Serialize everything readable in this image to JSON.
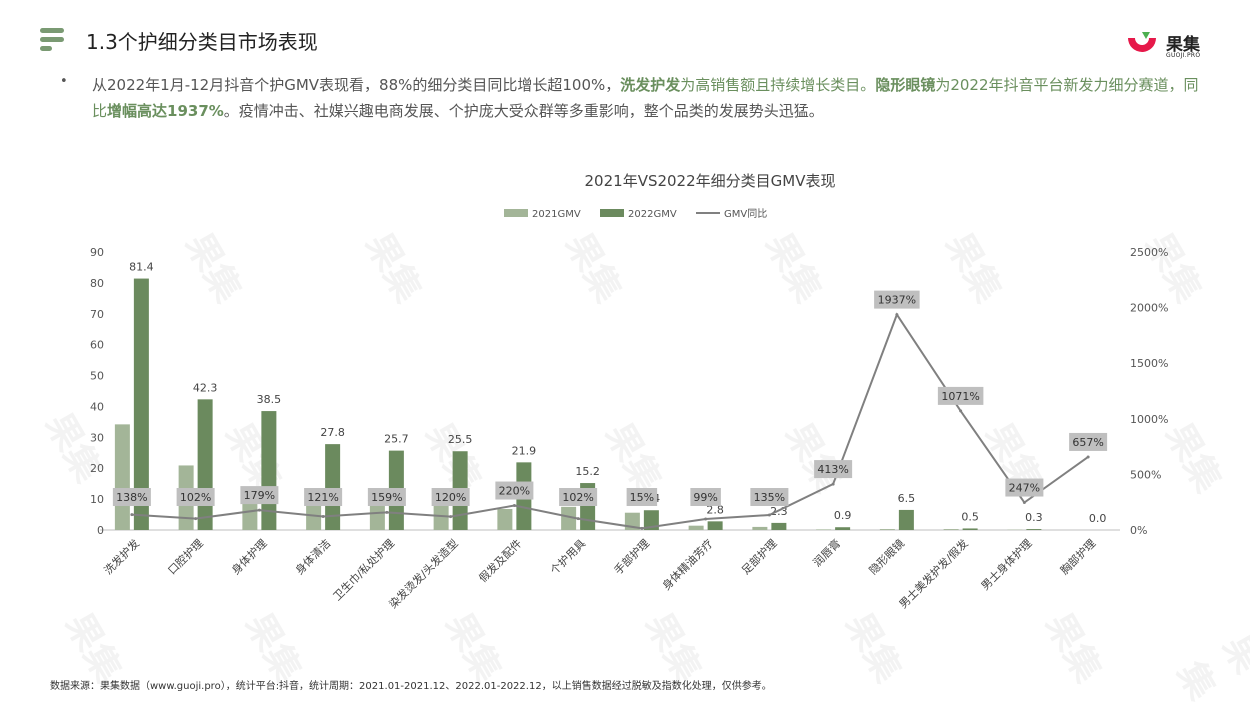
{
  "header": {
    "title": "1.3个护细分类目市场表现",
    "logo_text": "果集",
    "logo_sub": "GUOJI.PRO"
  },
  "description": {
    "bullet": "•",
    "p1": "从2022年1月-12月抖音个护GMV表现看，88%的细分类目同比增长超100%，",
    "h1": "洗发护发",
    "p2": "为高销售额且持续增长类目。",
    "h2": "隐形眼镜",
    "p3": "为2022年抖音平台新发力细分赛道，同比",
    "h3": "增幅高达1937%",
    "p4": "。疫情冲击、社媒兴趣电商发展、个护庞大受众群等多重影响，整个品类的发展势头迅猛。"
  },
  "footnote": "数据来源：果集数据（www.guoji.pro），统计平台:抖音，统计周期：2021.01-2021.12、2022.01-2022.12，以上销售数据经过脱敏及指数化处理，仅供参考。",
  "watermark": "果集",
  "colors": {
    "gmv2021": "#a3b598",
    "gmv2022": "#6b8a5e",
    "yoy_line": "#808080",
    "label_bg": "#bfbfbf",
    "accent": "#6a8f5e",
    "logo_red": "#e6194a",
    "logo_green": "#4caf50"
  },
  "chart_data": {
    "type": "bar",
    "title": "2021年VS2022年细分类目GMV表现",
    "categories": [
      "洗发护发",
      "口腔护理",
      "身体护理",
      "身体清洁",
      "卫生巾/私处护理",
      "染发烫发/头发造型",
      "假发及配件",
      "个护用具",
      "手部护理",
      "身体精油芳疗",
      "足部护理",
      "润唇膏",
      "隐形眼镜",
      "男士美发护发/假发",
      "男士身体护理",
      "胸部护理"
    ],
    "series": [
      {
        "name": "2021GMV",
        "type": "bar",
        "axis": "left",
        "values": [
          34.2,
          20.9,
          13.8,
          12.7,
          9.9,
          11.6,
          6.8,
          7.5,
          5.6,
          1.4,
          1.0,
          0.2,
          0.3,
          0.3,
          0.1,
          0.0
        ]
      },
      {
        "name": "2022GMV",
        "type": "bar",
        "axis": "left",
        "values": [
          81.4,
          42.3,
          38.5,
          27.8,
          25.7,
          25.5,
          21.9,
          15.2,
          6.4,
          2.8,
          2.3,
          0.9,
          6.5,
          0.5,
          0.3,
          0.0
        ],
        "labels": [
          "81.4",
          "42.3",
          "38.5",
          "27.8",
          "25.7",
          "25.5",
          "21.9",
          "15.2",
          "6.4",
          "2.8",
          "2.3",
          "0.9",
          "6.5",
          "0.5",
          "0.3",
          "0.0"
        ]
      },
      {
        "name": "GMV同比",
        "type": "line",
        "axis": "right",
        "values": [
          138,
          102,
          179,
          121,
          159,
          120,
          220,
          102,
          15,
          99,
          135,
          413,
          1937,
          1071,
          247,
          657
        ],
        "labels": [
          "138%",
          "102%",
          "179%",
          "121%",
          "159%",
          "120%",
          "220%",
          "102%",
          "15%",
          "99%",
          "135%",
          "413%",
          "1937%",
          "1071%",
          "247%",
          "657%"
        ]
      }
    ],
    "ylim_left": [
      0,
      90
    ],
    "yticks_left": [
      "0",
      "10",
      "20",
      "30",
      "40",
      "50",
      "60",
      "70",
      "80",
      "90"
    ],
    "ylim_right": [
      0,
      2500
    ],
    "yticks_right": [
      "0%",
      "500%",
      "1000%",
      "1500%",
      "2000%",
      "2500%"
    ],
    "legend_position": "top-center",
    "grid": false
  }
}
